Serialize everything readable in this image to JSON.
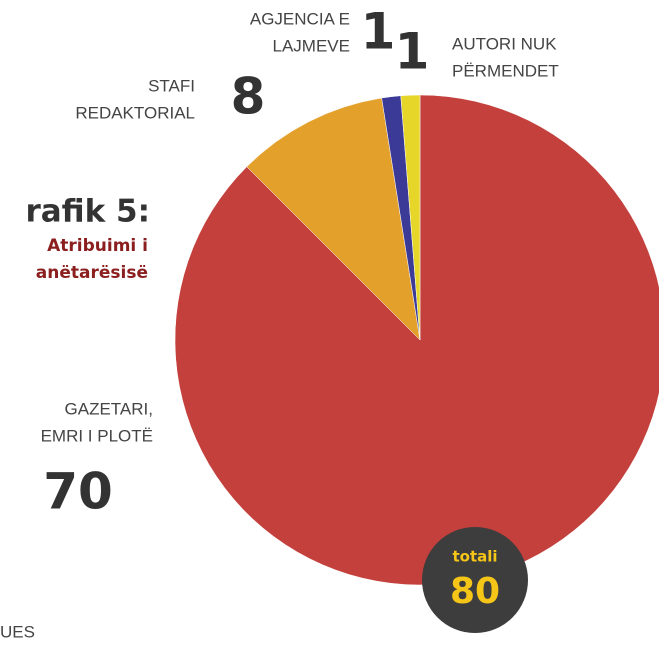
{
  "chart_data": {
    "type": "pie",
    "title": "rafik 5:",
    "subtitle": [
      "Atribuimi i",
      "anëtarësisë"
    ],
    "categories": [
      [
        "GAZETARI,",
        "EMRI I PLOTË"
      ],
      [
        "STAFI",
        "REDAKTORIAL"
      ],
      [
        "AGJENCIA E",
        "LAJMEVE"
      ],
      [
        "AUTORI NUK",
        "PËRMENDET"
      ]
    ],
    "values": [
      70,
      8,
      1,
      1
    ],
    "colors": [
      "#c4403c",
      "#e3a02a",
      "#3b3a96",
      "#e6d62a"
    ],
    "total": {
      "label": "totali",
      "value": 80
    },
    "footer": "UES"
  }
}
